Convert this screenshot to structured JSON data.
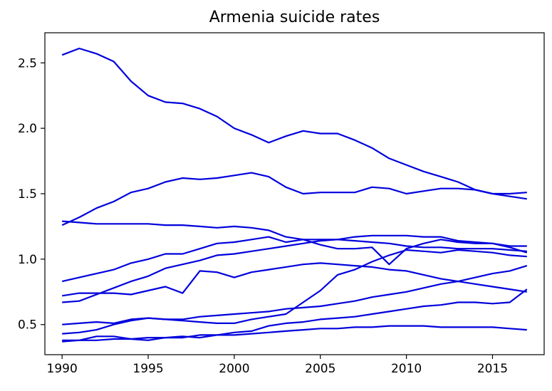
{
  "chart_data": {
    "type": "line",
    "title": "Armenia suicide rates",
    "xlabel": "",
    "ylabel": "",
    "xlim": [
      1989.0,
      2018.0
    ],
    "ylim": [
      0.27,
      2.73
    ],
    "xticks": [
      1990,
      1995,
      2000,
      2005,
      2010,
      2015
    ],
    "yticks": [
      0.5,
      1.0,
      1.5,
      2.0,
      2.5
    ],
    "grid": false,
    "legend": "none",
    "line_color": "#0000dd",
    "x": [
      1990,
      1991,
      1992,
      1993,
      1994,
      1995,
      1996,
      1997,
      1998,
      1999,
      2000,
      2001,
      2002,
      2003,
      2004,
      2005,
      2006,
      2007,
      2008,
      2009,
      2010,
      2011,
      2012,
      2013,
      2014,
      2015,
      2016,
      2017
    ],
    "series": [
      {
        "values": [
          2.56,
          2.61,
          2.57,
          2.51,
          2.36,
          2.25,
          2.2,
          2.19,
          2.15,
          2.09,
          2.0,
          1.95,
          1.89,
          1.94,
          1.98,
          1.96,
          1.96,
          1.91,
          1.85,
          1.77,
          1.72,
          1.67,
          1.63,
          1.59,
          1.53,
          1.5,
          1.48,
          1.46
        ]
      },
      {
        "values": [
          1.26,
          1.32,
          1.39,
          1.44,
          1.51,
          1.54,
          1.59,
          1.62,
          1.61,
          1.62,
          1.64,
          1.66,
          1.63,
          1.55,
          1.5,
          1.51,
          1.51,
          1.51,
          1.55,
          1.54,
          1.5,
          1.52,
          1.54,
          1.54,
          1.53,
          1.5,
          1.5,
          1.51
        ]
      },
      {
        "values": [
          1.29,
          1.28,
          1.27,
          1.27,
          1.27,
          1.27,
          1.26,
          1.26,
          1.25,
          1.24,
          1.25,
          1.24,
          1.22,
          1.17,
          1.15,
          1.11,
          1.08,
          1.08,
          1.09,
          0.96,
          1.08,
          1.12,
          1.15,
          1.13,
          1.12,
          1.12,
          1.09,
          1.05
        ]
      },
      {
        "values": [
          0.83,
          0.86,
          0.89,
          0.92,
          0.97,
          1.0,
          1.04,
          1.04,
          1.08,
          1.12,
          1.13,
          1.15,
          1.17,
          1.13,
          1.15,
          1.15,
          1.15,
          1.17,
          1.18,
          1.18,
          1.18,
          1.17,
          1.17,
          1.14,
          1.13,
          1.12,
          1.1,
          1.1
        ]
      },
      {
        "values": [
          0.72,
          0.74,
          0.74,
          0.74,
          0.73,
          0.76,
          0.79,
          0.74,
          0.91,
          0.9,
          0.86,
          0.9,
          0.92,
          0.94,
          0.96,
          0.97,
          0.96,
          0.95,
          0.94,
          0.92,
          0.91,
          0.88,
          0.85,
          0.83,
          0.81,
          0.79,
          0.77,
          0.75
        ]
      },
      {
        "values": [
          0.67,
          0.68,
          0.73,
          0.78,
          0.83,
          0.87,
          0.93,
          0.96,
          0.99,
          1.03,
          1.04,
          1.06,
          1.08,
          1.1,
          1.12,
          1.14,
          1.15,
          1.14,
          1.13,
          1.12,
          1.1,
          1.09,
          1.09,
          1.08,
          1.08,
          1.08,
          1.07,
          1.06
        ]
      },
      {
        "values": [
          0.5,
          0.51,
          0.52,
          0.51,
          0.54,
          0.55,
          0.54,
          0.53,
          0.52,
          0.51,
          0.51,
          0.54,
          0.56,
          0.58,
          0.67,
          0.76,
          0.88,
          0.92,
          0.98,
          1.03,
          1.07,
          1.06,
          1.05,
          1.07,
          1.06,
          1.05,
          1.03,
          1.02
        ]
      },
      {
        "values": [
          0.43,
          0.44,
          0.46,
          0.5,
          0.53,
          0.55,
          0.54,
          0.54,
          0.56,
          0.57,
          0.58,
          0.59,
          0.6,
          0.62,
          0.63,
          0.64,
          0.66,
          0.68,
          0.71,
          0.73,
          0.75,
          0.78,
          0.81,
          0.83,
          0.86,
          0.89,
          0.91,
          0.95
        ]
      },
      {
        "values": [
          0.38,
          0.38,
          0.41,
          0.41,
          0.39,
          0.4,
          0.4,
          0.41,
          0.4,
          0.42,
          0.44,
          0.45,
          0.49,
          0.51,
          0.52,
          0.54,
          0.55,
          0.56,
          0.58,
          0.6,
          0.62,
          0.64,
          0.65,
          0.67,
          0.67,
          0.66,
          0.67,
          0.77
        ]
      },
      {
        "values": [
          0.37,
          0.38,
          0.38,
          0.39,
          0.39,
          0.38,
          0.4,
          0.4,
          0.42,
          0.42,
          0.42,
          0.43,
          0.44,
          0.45,
          0.46,
          0.47,
          0.47,
          0.48,
          0.48,
          0.49,
          0.49,
          0.49,
          0.48,
          0.48,
          0.48,
          0.48,
          0.47,
          0.46
        ]
      }
    ]
  }
}
